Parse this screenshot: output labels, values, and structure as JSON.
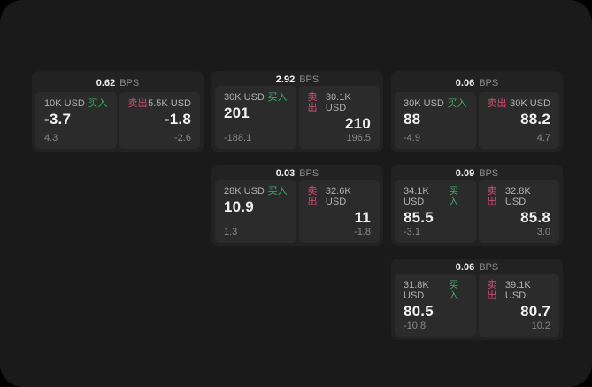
{
  "labels": {
    "bps": "BPS",
    "buy": "买入",
    "sell": "卖出"
  },
  "colors": {
    "buy": "#3fae68",
    "sell": "#d44f6f",
    "screen_bg": "#1a1a1b",
    "card_bg": "#222223",
    "panel_bg": "#2b2b2c"
  },
  "cards": [
    {
      "bps": "0.62",
      "buy": {
        "amount": "10K USD",
        "price": "-3.7",
        "sub": "4.3"
      },
      "sell": {
        "amount": "5.5K USD",
        "price": "-1.8",
        "sub": "-2.6"
      }
    },
    {
      "bps": "2.92",
      "buy": {
        "amount": "30K USD",
        "price": "201",
        "sub": "-188.1"
      },
      "sell": {
        "amount": "30.1K USD",
        "price": "210",
        "sub": "196.5"
      }
    },
    {
      "bps": "0.06",
      "buy": {
        "amount": "30K USD",
        "price": "88",
        "sub": "-4.9"
      },
      "sell": {
        "amount": "30K USD",
        "price": "88.2",
        "sub": "4.7"
      }
    },
    {
      "bps": "0.03",
      "buy": {
        "amount": "28K USD",
        "price": "10.9",
        "sub": "1.3"
      },
      "sell": {
        "amount": "32.6K USD",
        "price": "11",
        "sub": "-1.8"
      }
    },
    {
      "bps": "0.09",
      "buy": {
        "amount": "34.1K USD",
        "price": "85.5",
        "sub": "-3.1"
      },
      "sell": {
        "amount": "32.8K USD",
        "price": "85.8",
        "sub": "3.0"
      }
    },
    {
      "bps": "0.06",
      "buy": {
        "amount": "31.8K USD",
        "price": "80.5",
        "sub": "-10.8"
      },
      "sell": {
        "amount": "39.1K USD",
        "price": "80.7",
        "sub": "10.2"
      }
    }
  ]
}
